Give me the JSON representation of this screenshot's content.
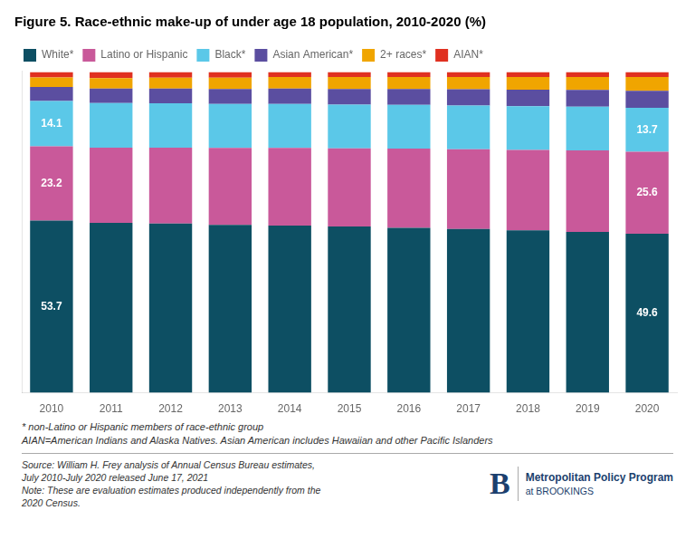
{
  "chart_data": {
    "type": "bar",
    "title": "Figure 5. Race-ethnic make-up of under age 18 population, 2010-2020 (%)",
    "categories": [
      "2010",
      "2011",
      "2012",
      "2013",
      "2014",
      "2015",
      "2016",
      "2017",
      "2018",
      "2019",
      "2020"
    ],
    "series": [
      {
        "name": "White*",
        "color": "#0d4f63",
        "values": [
          53.7,
          53.0,
          52.8,
          52.4,
          52.2,
          51.9,
          51.5,
          51.1,
          50.7,
          50.2,
          49.6
        ],
        "value_labels": [
          "53.7",
          null,
          null,
          null,
          null,
          null,
          null,
          null,
          null,
          null,
          "49.6"
        ]
      },
      {
        "name": "Latino or Hispanic",
        "color": "#c9599a",
        "values": [
          23.2,
          23.5,
          23.7,
          24.0,
          24.2,
          24.4,
          24.7,
          24.9,
          25.1,
          25.4,
          25.6
        ],
        "value_labels": [
          "23.2",
          null,
          null,
          null,
          null,
          null,
          null,
          null,
          null,
          null,
          "25.6"
        ]
      },
      {
        "name": "Black*",
        "color": "#5bc8e8",
        "values": [
          14.1,
          13.9,
          13.8,
          13.7,
          13.7,
          13.6,
          13.6,
          13.6,
          13.6,
          13.7,
          13.7
        ],
        "value_labels": [
          "14.1",
          null,
          null,
          null,
          null,
          null,
          null,
          null,
          null,
          null,
          "13.7"
        ]
      },
      {
        "name": "Asian American*",
        "color": "#5b4ea0",
        "values": [
          4.4,
          4.5,
          4.6,
          4.7,
          4.8,
          4.9,
          5.0,
          5.1,
          5.2,
          5.2,
          5.3
        ]
      },
      {
        "name": "2+ races*",
        "color": "#f0a500",
        "values": [
          3.0,
          3.3,
          3.4,
          3.5,
          3.6,
          3.7,
          3.7,
          3.8,
          3.9,
          4.0,
          4.3
        ]
      },
      {
        "name": "AIAN*",
        "color": "#e03020",
        "values": [
          1.6,
          1.8,
          1.7,
          1.7,
          1.5,
          1.5,
          1.5,
          1.5,
          1.5,
          1.5,
          1.5
        ]
      }
    ],
    "stacked": true,
    "ylim": [
      0,
      100.5
    ],
    "tick_labels": "x",
    "grid": false,
    "legend": "top",
    "annotations": [
      "* non-Latino or Hispanic members of race-ethnic group",
      "AIAN=American Indians and Alaska Natives. Asian American includes Hawaiian and other Pacific Islanders",
      "Source: William H. Frey analysis of Annual Census Bureau estimates,",
      "July 2010-July 2020 released June 17, 2021",
      "Note: These are evaluation estimates produced independently from the",
      "2020 Census.",
      "B",
      "Metropolitan Policy Program",
      "at BROOKINGS"
    ]
  }
}
